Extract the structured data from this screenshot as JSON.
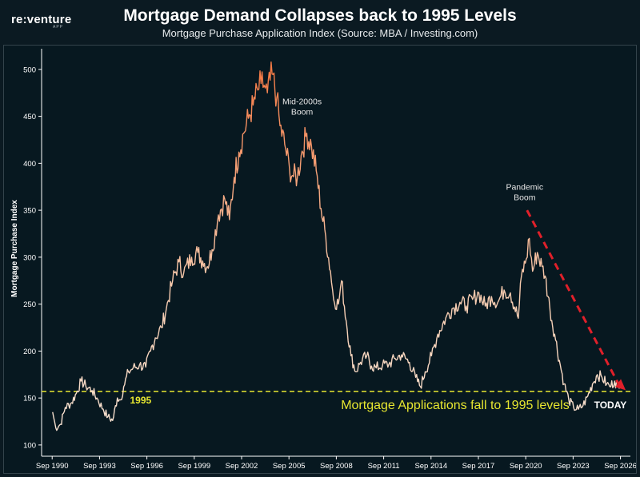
{
  "header": {
    "logo": "re:venture",
    "logo_sub": "APP",
    "title": "Mortgage Demand Collapses back to 1995 Levels",
    "subtitle": "Mortgage Purchase Application Index (Source: MBA / Investing.com)"
  },
  "chart_data": {
    "type": "line",
    "title": "Mortgage Demand Collapses back to 1995 Levels",
    "subtitle": "Mortgage Purchase Application Index (Source: MBA / Investing.com)",
    "xlabel": "",
    "ylabel": "Mortgage Purchase Index",
    "xlim": [
      1990.0,
      2027.3
    ],
    "ylim": [
      88,
      522
    ],
    "x_ticks": [
      "Sep 1990",
      "Sep 1993",
      "Sep 1996",
      "Sep 1999",
      "Sep 2002",
      "Sep 2005",
      "Sep 2008",
      "Sep 2011",
      "Sep 2014",
      "Sep 2017",
      "Sep 2020",
      "Sep 2023",
      "Sep 2026"
    ],
    "y_ticks": [
      100,
      150,
      200,
      250,
      300,
      350,
      400,
      450,
      500
    ],
    "grid": false,
    "series": [
      {
        "points": [
          [
            1990.7,
            135
          ],
          [
            1990.9,
            118
          ],
          [
            1991.2,
            122
          ],
          [
            1991.5,
            140
          ],
          [
            1991.9,
            145
          ],
          [
            1992.2,
            155
          ],
          [
            1992.5,
            168
          ],
          [
            1992.8,
            163
          ],
          [
            1993.2,
            158
          ],
          [
            1993.5,
            150
          ],
          [
            1993.9,
            138
          ],
          [
            1994.2,
            130
          ],
          [
            1994.5,
            126
          ],
          [
            1994.8,
            150
          ],
          [
            1995.0,
            148
          ],
          [
            1995.2,
            162
          ],
          [
            1995.5,
            178
          ],
          [
            1995.8,
            182
          ],
          [
            1996.2,
            185
          ],
          [
            1996.6,
            183
          ],
          [
            1996.9,
            200
          ],
          [
            1997.2,
            214
          ],
          [
            1997.6,
            225
          ],
          [
            1997.9,
            245
          ],
          [
            1998.3,
            275
          ],
          [
            1998.7,
            295
          ],
          [
            1999.0,
            283
          ],
          [
            1999.5,
            300
          ],
          [
            1999.9,
            305
          ],
          [
            2000.2,
            296
          ],
          [
            2000.5,
            290
          ],
          [
            2000.8,
            308
          ],
          [
            2001.2,
            345
          ],
          [
            2001.6,
            362
          ],
          [
            2001.9,
            340
          ],
          [
            2002.2,
            385
          ],
          [
            2002.5,
            412
          ],
          [
            2002.8,
            432
          ],
          [
            2003.1,
            448
          ],
          [
            2003.4,
            462
          ],
          [
            2003.7,
            478
          ],
          [
            2003.9,
            485
          ],
          [
            2004.1,
            483
          ],
          [
            2004.3,
            475
          ],
          [
            2004.6,
            495
          ],
          [
            2004.9,
            470
          ],
          [
            2005.1,
            440
          ],
          [
            2005.4,
            420
          ],
          [
            2005.7,
            395
          ],
          [
            2005.9,
            387
          ],
          [
            2006.2,
            385
          ],
          [
            2006.5,
            413
          ],
          [
            2006.8,
            432
          ],
          [
            2007.1,
            418
          ],
          [
            2007.4,
            392
          ],
          [
            2007.7,
            352
          ],
          [
            2008.0,
            322
          ],
          [
            2008.3,
            285
          ],
          [
            2008.5,
            255
          ],
          [
            2008.8,
            250
          ],
          [
            2009.0,
            275
          ],
          [
            2009.3,
            232
          ],
          [
            2009.6,
            195
          ],
          [
            2009.9,
            178
          ],
          [
            2010.2,
            188
          ],
          [
            2010.6,
            195
          ],
          [
            2010.9,
            184
          ],
          [
            2011.2,
            182
          ],
          [
            2011.6,
            185
          ],
          [
            2012.0,
            186
          ],
          [
            2012.4,
            192
          ],
          [
            2012.8,
            196
          ],
          [
            2013.3,
            188
          ],
          [
            2013.7,
            172
          ],
          [
            2014.0,
            162
          ],
          [
            2014.3,
            178
          ],
          [
            2014.7,
            195
          ],
          [
            2015.1,
            218
          ],
          [
            2015.6,
            235
          ],
          [
            2016.0,
            245
          ],
          [
            2016.5,
            252
          ],
          [
            2016.9,
            248
          ],
          [
            2017.3,
            255
          ],
          [
            2017.7,
            262
          ],
          [
            2018.1,
            248
          ],
          [
            2018.5,
            258
          ],
          [
            2018.9,
            252
          ],
          [
            2019.3,
            265
          ],
          [
            2019.7,
            262
          ],
          [
            2020.2,
            235
          ],
          [
            2020.4,
            280
          ],
          [
            2020.7,
            298
          ],
          [
            2020.9,
            320
          ],
          [
            2021.1,
            285
          ],
          [
            2021.4,
            305
          ],
          [
            2021.7,
            290
          ],
          [
            2021.9,
            280
          ],
          [
            2022.2,
            245
          ],
          [
            2022.5,
            218
          ],
          [
            2022.8,
            190
          ],
          [
            2023.1,
            165
          ],
          [
            2023.4,
            148
          ],
          [
            2023.7,
            140
          ],
          [
            2024.0,
            138
          ],
          [
            2024.3,
            142
          ],
          [
            2024.6,
            152
          ],
          [
            2024.9,
            165
          ],
          [
            2025.2,
            175
          ],
          [
            2025.5,
            172
          ],
          [
            2025.8,
            165
          ],
          [
            2026.0,
            162
          ],
          [
            2026.3,
            168
          ],
          [
            2026.6,
            160
          ]
        ]
      }
    ],
    "reference_line": {
      "y": 157,
      "label": "1995",
      "color": "#e6e630"
    },
    "trend_line": {
      "from": [
        2020.75,
        350
      ],
      "to": [
        2026.9,
        160
      ],
      "color": "#e0202a"
    },
    "annotations": {
      "boom1": [
        "Mid-2000s",
        "Boom"
      ],
      "boom2": [
        "Pandemic",
        "Boom"
      ],
      "levels": "Mortgage Applications fall to 1995 levels",
      "today": "TODAY"
    },
    "colors": {
      "background": "#071820",
      "line_low": "#f7e6d8",
      "line_high": "#f47a45",
      "axis": "#ffffff"
    }
  }
}
